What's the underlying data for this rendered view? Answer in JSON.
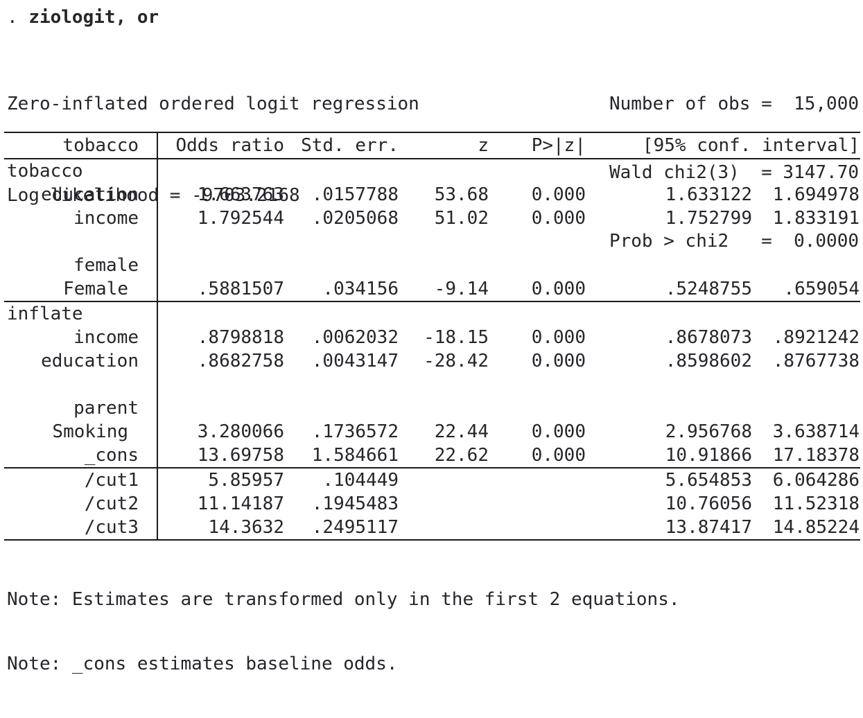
{
  "colors": {
    "text": "#24262b",
    "rule": "#1a1a1a",
    "background": "#ffffff"
  },
  "command": {
    "prompt": ". ",
    "text": "ziologit, or"
  },
  "summary": {
    "title": "Zero-inflated ordered logit regression",
    "log_likelihood": "Log likelihood = -9703.2168",
    "stats": [
      "Number of obs =  15,000",
      "Wald chi2(3)  = 3147.70",
      "Prob > chi2   =  0.0000"
    ]
  },
  "table": {
    "header": {
      "depvar": "tobacco",
      "odds": "Odds ratio",
      "se": "Std. err.",
      "z": "z",
      "p": "P>|z|",
      "ci": "[95% conf. interval]"
    },
    "sections": [
      {
        "rows": [
          {
            "kind": "group",
            "label": "tobacco"
          },
          {
            "kind": "data",
            "label": "education",
            "odds": "1.663763",
            "se": ".0157788",
            "z": "53.68",
            "p": "0.000",
            "lo": "1.633122",
            "hi": "1.694978"
          },
          {
            "kind": "data",
            "label": "income",
            "odds": "1.792544",
            "se": ".0205068",
            "z": "51.02",
            "p": "0.000",
            "lo": "1.752799",
            "hi": "1.833191"
          },
          {
            "kind": "blank",
            "label": ""
          },
          {
            "kind": "sub",
            "label": "female"
          },
          {
            "kind": "data",
            "label": "Female",
            "odds": ".5881507",
            "se": ".034156",
            "z": "-9.14",
            "p": "0.000",
            "lo": ".5248755",
            "hi": ".659054"
          }
        ]
      },
      {
        "rows": [
          {
            "kind": "group",
            "label": "inflate"
          },
          {
            "kind": "data",
            "label": "income",
            "odds": ".8798818",
            "se": ".0062032",
            "z": "-18.15",
            "p": "0.000",
            "lo": ".8678073",
            "hi": ".8921242"
          },
          {
            "kind": "data",
            "label": "education",
            "odds": ".8682758",
            "se": ".0043147",
            "z": "-28.42",
            "p": "0.000",
            "lo": ".8598602",
            "hi": ".8767738"
          },
          {
            "kind": "blank",
            "label": ""
          },
          {
            "kind": "sub",
            "label": "parent"
          },
          {
            "kind": "data",
            "label": "Smoking",
            "odds": "3.280066",
            "se": ".1736572",
            "z": "22.44",
            "p": "0.000",
            "lo": "2.956768",
            "hi": "3.638714"
          },
          {
            "kind": "data",
            "label": "_cons",
            "odds": "13.69758",
            "se": "1.584661",
            "z": "22.62",
            "p": "0.000",
            "lo": "10.91866",
            "hi": "17.18378"
          }
        ]
      },
      {
        "rows": [
          {
            "kind": "data",
            "label": "/cut1",
            "odds": "5.85957",
            "se": ".104449",
            "z": "",
            "p": "",
            "lo": "5.654853",
            "hi": "6.064286"
          },
          {
            "kind": "data",
            "label": "/cut2",
            "odds": "11.14187",
            "se": ".1945483",
            "z": "",
            "p": "",
            "lo": "10.76056",
            "hi": "11.52318"
          },
          {
            "kind": "data",
            "label": "/cut3",
            "odds": "14.3632",
            "se": ".2495117",
            "z": "",
            "p": "",
            "lo": "13.87417",
            "hi": "14.85224"
          }
        ]
      }
    ]
  },
  "notes": [
    "Note: Estimates are transformed only in the first 2 equations.",
    "Note: _cons estimates baseline odds."
  ]
}
